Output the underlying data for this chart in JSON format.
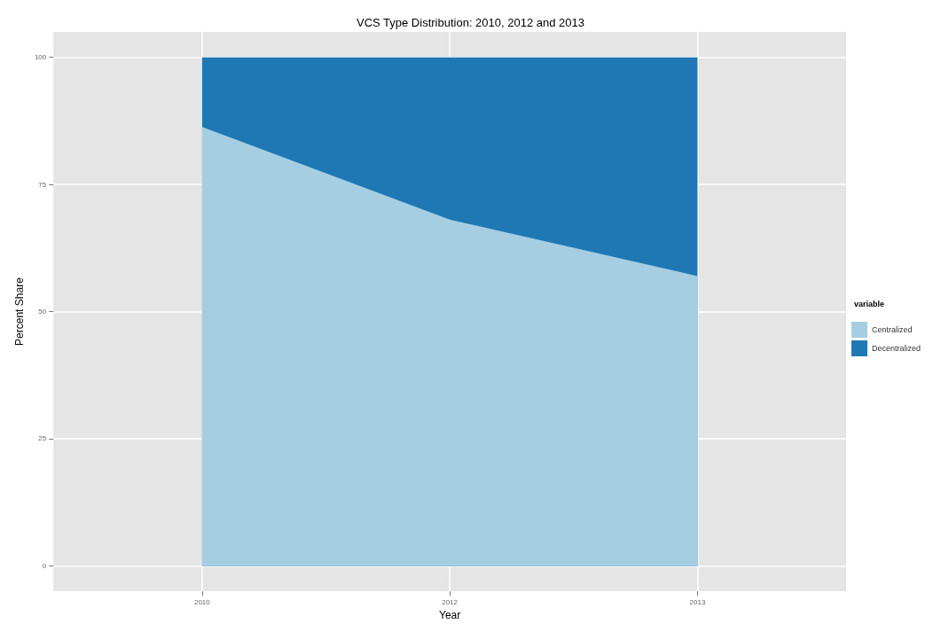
{
  "chart_data": {
    "type": "area",
    "title": "VCS Type Distribution: 2010, 2012 and 2013",
    "xlabel": "Year",
    "ylabel": "Percent Share",
    "legend_title": "variable",
    "categories": [
      "2010",
      "2012",
      "2013"
    ],
    "stacked": true,
    "series": [
      {
        "name": "Centralized",
        "color": "#a6cee3",
        "values": [
          86.3,
          68.1,
          57.0
        ]
      },
      {
        "name": "Decentralized",
        "color": "#1f78b4",
        "values": [
          13.7,
          31.9,
          43.0
        ]
      }
    ],
    "ylim": [
      -5,
      105
    ],
    "yticks": [
      0,
      25,
      50,
      75,
      100
    ],
    "grid": true,
    "legend": "right"
  }
}
